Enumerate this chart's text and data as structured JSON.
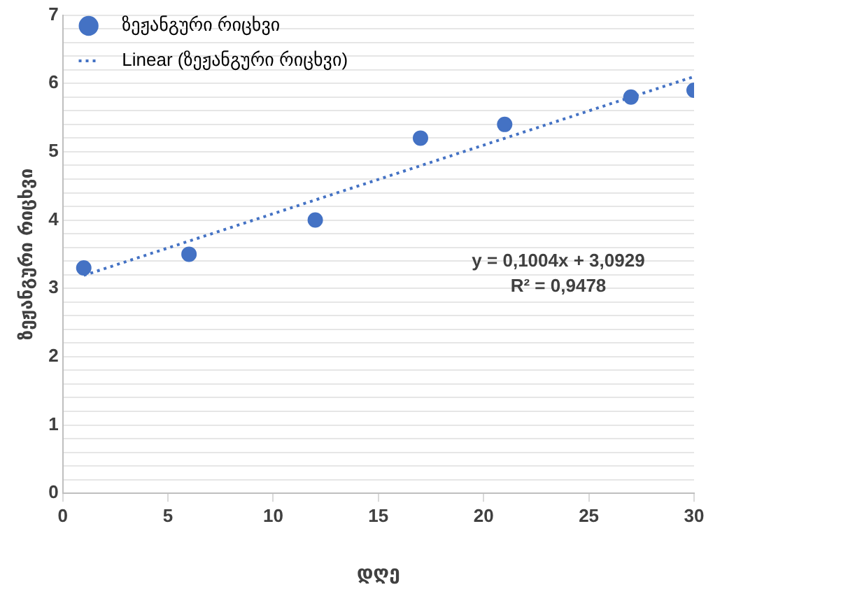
{
  "chart_data": {
    "type": "scatter",
    "xlabel": "დღე",
    "ylabel": "ზეჟანგური რიცხვი",
    "xlim": [
      0,
      30
    ],
    "xticks": [
      0,
      5,
      10,
      15,
      20,
      25,
      30
    ],
    "ylim": [
      0,
      7
    ],
    "yticks": [
      0,
      {
        "value": 0.2,
        "label": null
      },
      {
        "value": 0.4,
        "label": null
      },
      {
        "value": 0.6,
        "label": null
      },
      {
        "value": 0.8,
        "label": null
      },
      1,
      {
        "value": 1.2,
        "label": null
      },
      {
        "value": 1.4,
        "label": null
      },
      {
        "value": 1.6,
        "label": null
      },
      {
        "value": 1.8,
        "label": null
      },
      2,
      {
        "value": 2.2,
        "label": null
      },
      {
        "value": 2.4,
        "label": null
      },
      {
        "value": 2.6,
        "label": null
      },
      {
        "value": 2.8,
        "label": null
      },
      3,
      {
        "value": 3.2,
        "label": null
      },
      {
        "value": 3.4,
        "label": null
      },
      {
        "value": 3.6,
        "label": null
      },
      {
        "value": 3.8,
        "label": null
      },
      4,
      {
        "value": 4.2,
        "label": null
      },
      {
        "value": 4.4,
        "label": null
      },
      {
        "value": 4.6,
        "label": null
      },
      {
        "value": 4.8,
        "label": null
      },
      5,
      {
        "value": 5.2,
        "label": null
      },
      {
        "value": 5.4,
        "label": null
      },
      {
        "value": 5.6,
        "label": null
      },
      {
        "value": 5.8,
        "label": null
      },
      6,
      {
        "value": 6.2,
        "label": null
      },
      {
        "value": 6.4,
        "label": null
      },
      {
        "value": 6.6,
        "label": null
      },
      {
        "value": 6.8,
        "label": null
      },
      7
    ],
    "grid": "y",
    "legend": "top left",
    "marker": "circle",
    "series": [
      {
        "name": "ზეჟანგური რიცხვი",
        "color": "#4472c4",
        "x": [
          1,
          6,
          12,
          17,
          21,
          27,
          30
        ],
        "values": [
          3.3,
          3.5,
          4.0,
          5.2,
          5.4,
          5.8,
          5.9
        ]
      },
      {
        "name": "Linear (ზეჟანგური რიცხვი)",
        "type": "line",
        "color": "#4472c4",
        "line_style": "dotted",
        "marker": "none",
        "x": [
          1,
          30
        ],
        "values": [
          3.19,
          6.1
        ]
      }
    ],
    "annotations": [
      "y = 0,1004x + 3,0929",
      "R² = 0,9478"
    ]
  }
}
